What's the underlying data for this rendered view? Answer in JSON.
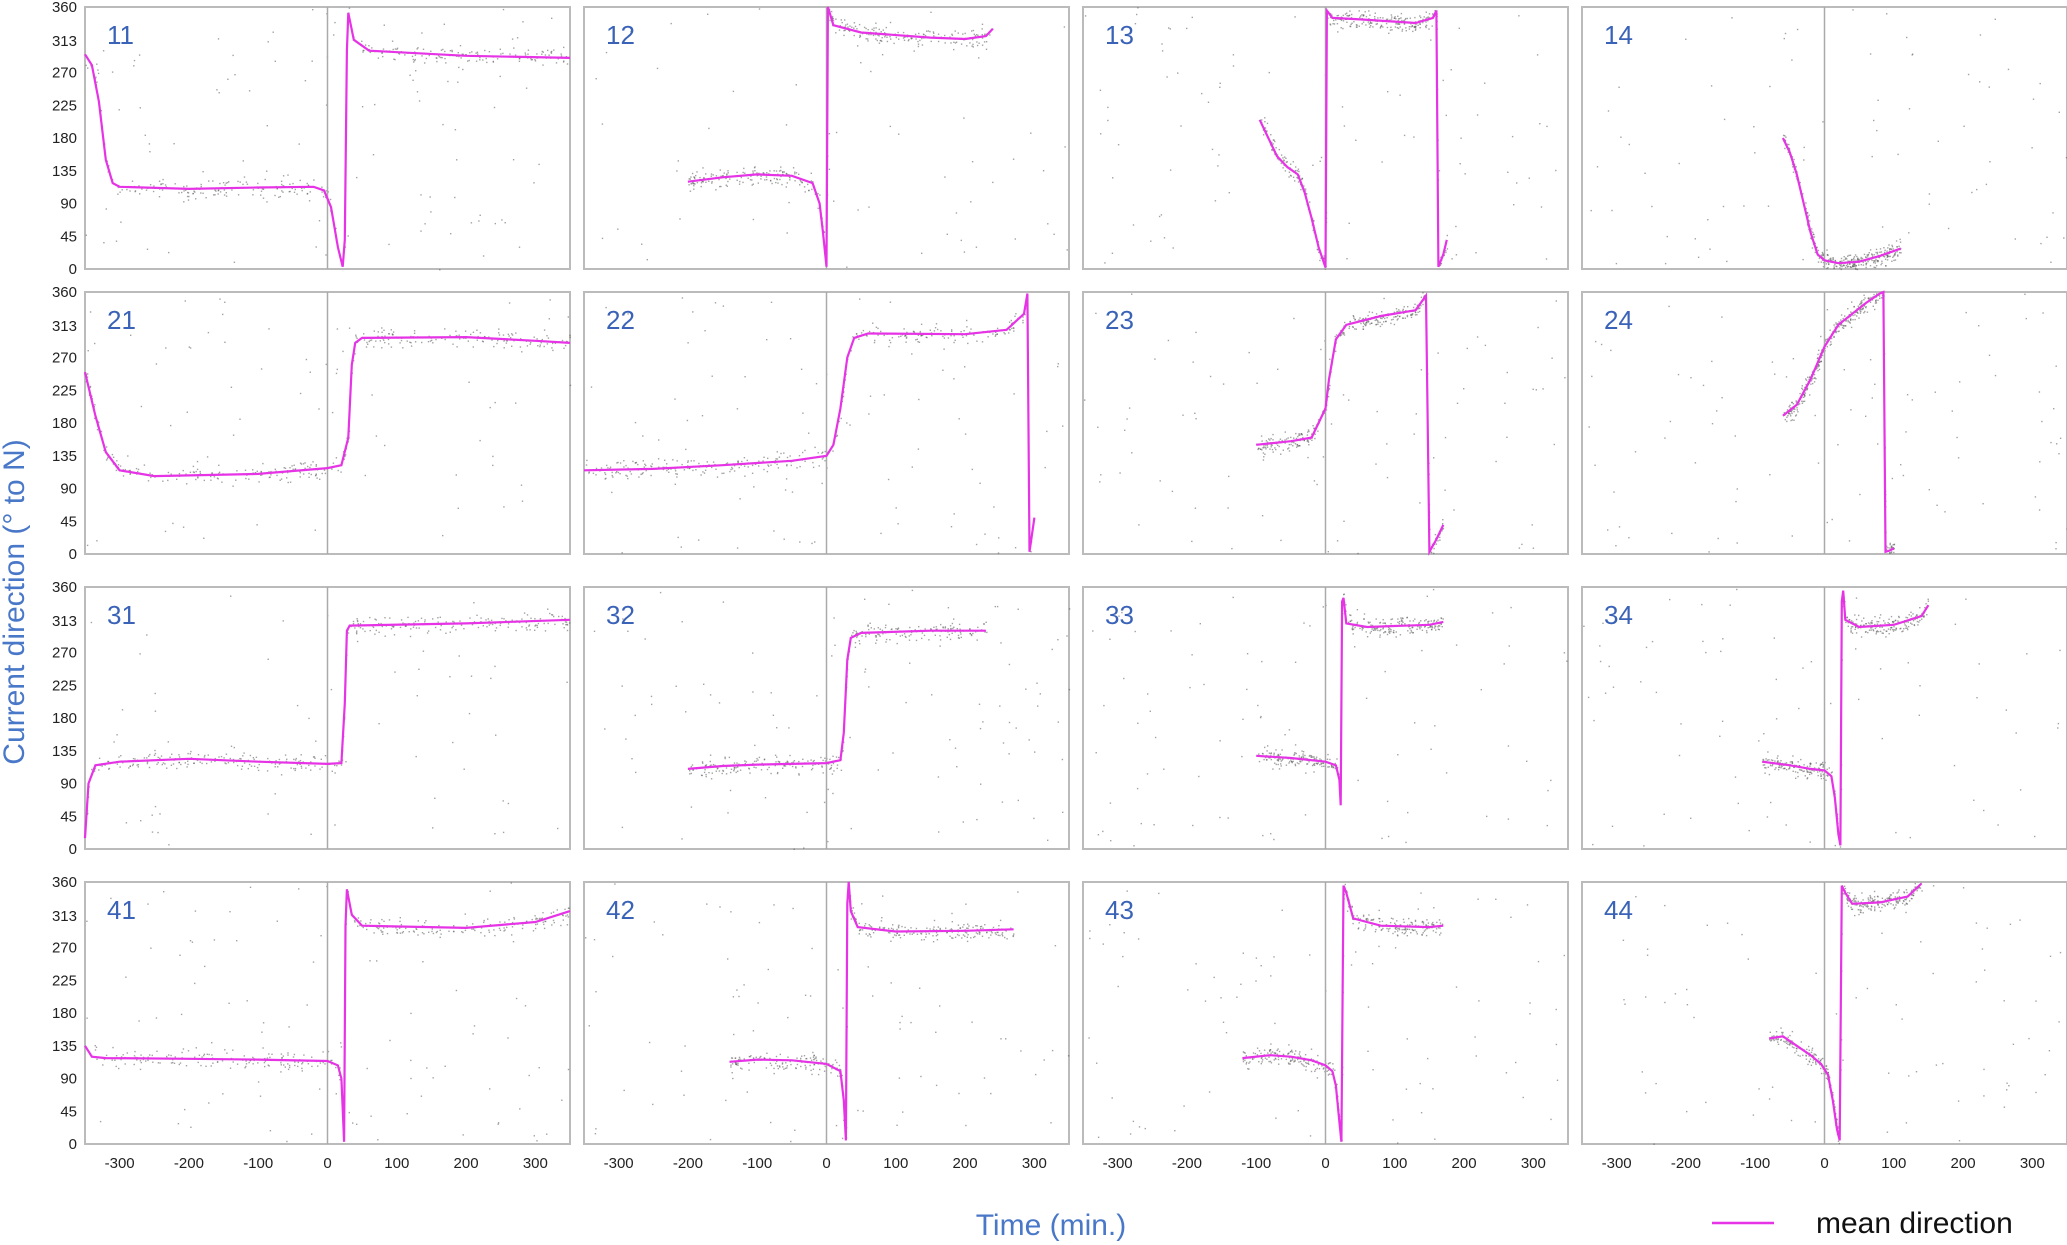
{
  "figure": {
    "ylabel": "Current direction (° to N)",
    "xlabel": "Time (min.)",
    "legend_label": "mean direction"
  },
  "colors": {
    "mean_line": "#e633e6",
    "points": "#555555",
    "axis_title": "#4a78c8",
    "panel_label": "#3a63b8",
    "frame": "#bbbbbb",
    "zero_line": "#aaaaaa"
  },
  "chart_data": {
    "type": "scatter",
    "xlim": [
      -350,
      350
    ],
    "ylim": [
      0,
      360
    ],
    "x_ticks": [
      -300,
      -200,
      -100,
      0,
      100,
      200,
      300
    ],
    "y_ticks": [
      0,
      45,
      90,
      135,
      180,
      225,
      270,
      313,
      360
    ],
    "grid": false,
    "legend_position": "bottom-right",
    "series_name": "mean direction",
    "panels": [
      {
        "label": "11",
        "mean": [
          [
            -350,
            295
          ],
          [
            -340,
            280
          ],
          [
            -330,
            230
          ],
          [
            -320,
            150
          ],
          [
            -310,
            118
          ],
          [
            -300,
            113
          ],
          [
            -200,
            110
          ],
          [
            -100,
            112
          ],
          [
            -20,
            113
          ],
          [
            -5,
            108
          ],
          [
            5,
            85
          ],
          [
            15,
            30
          ],
          [
            22,
            3
          ],
          [
            25,
            40
          ],
          [
            28,
            300
          ],
          [
            30,
            352
          ],
          [
            38,
            315
          ],
          [
            60,
            300
          ],
          [
            200,
            293
          ],
          [
            350,
            290
          ]
        ]
      },
      {
        "label": "21",
        "mean": [
          [
            -350,
            250
          ],
          [
            -335,
            190
          ],
          [
            -320,
            140
          ],
          [
            -300,
            115
          ],
          [
            -250,
            107
          ],
          [
            -100,
            110
          ],
          [
            0,
            118
          ],
          [
            20,
            122
          ],
          [
            30,
            160
          ],
          [
            35,
            260
          ],
          [
            40,
            290
          ],
          [
            50,
            297
          ],
          [
            200,
            298
          ],
          [
            300,
            293
          ],
          [
            350,
            290
          ]
        ]
      },
      {
        "label": "31",
        "mean": [
          [
            -350,
            15
          ],
          [
            -345,
            90
          ],
          [
            -335,
            115
          ],
          [
            -300,
            120
          ],
          [
            -200,
            124
          ],
          [
            -100,
            120
          ],
          [
            0,
            117
          ],
          [
            20,
            118
          ],
          [
            25,
            200
          ],
          [
            28,
            300
          ],
          [
            32,
            307
          ],
          [
            200,
            310
          ],
          [
            350,
            315
          ]
        ]
      },
      {
        "label": "41",
        "mean": [
          [
            -350,
            135
          ],
          [
            -340,
            120
          ],
          [
            -320,
            118
          ],
          [
            -200,
            117
          ],
          [
            -100,
            116
          ],
          [
            0,
            114
          ],
          [
            15,
            108
          ],
          [
            20,
            90
          ],
          [
            24,
            3
          ],
          [
            26,
            300
          ],
          [
            28,
            350
          ],
          [
            35,
            315
          ],
          [
            50,
            300
          ],
          [
            200,
            297
          ],
          [
            300,
            305
          ],
          [
            350,
            320
          ]
        ]
      },
      {
        "label": "12",
        "mean": [
          [
            -200,
            120
          ],
          [
            -150,
            126
          ],
          [
            -100,
            130
          ],
          [
            -50,
            128
          ],
          [
            -20,
            118
          ],
          [
            -10,
            90
          ],
          [
            -5,
            50
          ],
          [
            0,
            3
          ],
          [
            2,
            360
          ],
          [
            10,
            335
          ],
          [
            50,
            325
          ],
          [
            150,
            318
          ],
          [
            200,
            316
          ],
          [
            230,
            320
          ],
          [
            240,
            330
          ]
        ]
      },
      {
        "label": "22",
        "mean": [
          [
            -350,
            115
          ],
          [
            -250,
            117
          ],
          [
            -150,
            122
          ],
          [
            -50,
            128
          ],
          [
            0,
            135
          ],
          [
            10,
            150
          ],
          [
            20,
            200
          ],
          [
            30,
            270
          ],
          [
            40,
            297
          ],
          [
            60,
            303
          ],
          [
            200,
            302
          ],
          [
            260,
            308
          ],
          [
            285,
            330
          ],
          [
            290,
            358
          ],
          [
            293,
            3
          ],
          [
            300,
            50
          ]
        ]
      },
      {
        "label": "32",
        "mean": [
          [
            -200,
            110
          ],
          [
            -150,
            114
          ],
          [
            -100,
            116
          ],
          [
            -50,
            117
          ],
          [
            0,
            118
          ],
          [
            20,
            122
          ],
          [
            25,
            160
          ],
          [
            30,
            260
          ],
          [
            35,
            290
          ],
          [
            50,
            297
          ],
          [
            150,
            300
          ],
          [
            230,
            300
          ]
        ]
      },
      {
        "label": "42",
        "mean": [
          [
            -140,
            113
          ],
          [
            -100,
            116
          ],
          [
            -50,
            115
          ],
          [
            0,
            110
          ],
          [
            20,
            100
          ],
          [
            25,
            60
          ],
          [
            28,
            5
          ],
          [
            30,
            330
          ],
          [
            32,
            360
          ],
          [
            35,
            320
          ],
          [
            45,
            298
          ],
          [
            100,
            292
          ],
          [
            200,
            293
          ],
          [
            270,
            295
          ]
        ]
      },
      {
        "label": "13",
        "mean": [
          [
            -95,
            205
          ],
          [
            -85,
            185
          ],
          [
            -70,
            155
          ],
          [
            -55,
            140
          ],
          [
            -40,
            130
          ],
          [
            -30,
            105
          ],
          [
            -20,
            70
          ],
          [
            -10,
            30
          ],
          [
            0,
            2
          ],
          [
            2,
            355
          ],
          [
            10,
            345
          ],
          [
            50,
            343
          ],
          [
            100,
            340
          ],
          [
            130,
            338
          ],
          [
            155,
            345
          ],
          [
            160,
            355
          ],
          [
            163,
            3
          ],
          [
            170,
            20
          ],
          [
            175,
            40
          ]
        ]
      },
      {
        "label": "23",
        "mean": [
          [
            -100,
            150
          ],
          [
            -50,
            155
          ],
          [
            -20,
            160
          ],
          [
            0,
            200
          ],
          [
            5,
            240
          ],
          [
            15,
            295
          ],
          [
            30,
            315
          ],
          [
            80,
            327
          ],
          [
            130,
            335
          ],
          [
            145,
            355
          ],
          [
            150,
            3
          ],
          [
            160,
            20
          ],
          [
            170,
            40
          ]
        ]
      },
      {
        "label": "33",
        "mean": [
          [
            -100,
            128
          ],
          [
            -50,
            125
          ],
          [
            0,
            120
          ],
          [
            15,
            115
          ],
          [
            20,
            95
          ],
          [
            22,
            60
          ],
          [
            24,
            340
          ],
          [
            26,
            345
          ],
          [
            30,
            310
          ],
          [
            60,
            305
          ],
          [
            150,
            308
          ],
          [
            170,
            312
          ]
        ]
      },
      {
        "label": "43",
        "mean": [
          [
            -120,
            118
          ],
          [
            -80,
            122
          ],
          [
            -50,
            120
          ],
          [
            -20,
            115
          ],
          [
            0,
            108
          ],
          [
            10,
            100
          ],
          [
            15,
            80
          ],
          [
            20,
            30
          ],
          [
            23,
            3
          ],
          [
            26,
            355
          ],
          [
            30,
            345
          ],
          [
            40,
            310
          ],
          [
            80,
            300
          ],
          [
            150,
            298
          ],
          [
            170,
            300
          ]
        ]
      },
      {
        "label": "14",
        "mean": [
          [
            -60,
            180
          ],
          [
            -50,
            160
          ],
          [
            -40,
            130
          ],
          [
            -30,
            90
          ],
          [
            -20,
            50
          ],
          [
            -10,
            20
          ],
          [
            0,
            12
          ],
          [
            20,
            8
          ],
          [
            50,
            10
          ],
          [
            80,
            18
          ],
          [
            110,
            28
          ]
        ]
      },
      {
        "label": "24",
        "mean": [
          [
            -60,
            190
          ],
          [
            -40,
            205
          ],
          [
            -20,
            240
          ],
          [
            0,
            285
          ],
          [
            20,
            315
          ],
          [
            40,
            330
          ],
          [
            60,
            345
          ],
          [
            80,
            358
          ],
          [
            85,
            360
          ],
          [
            88,
            3
          ],
          [
            95,
            5
          ],
          [
            100,
            8
          ]
        ]
      },
      {
        "label": "34",
        "mean": [
          [
            -90,
            120
          ],
          [
            -50,
            115
          ],
          [
            -20,
            110
          ],
          [
            0,
            108
          ],
          [
            10,
            100
          ],
          [
            15,
            70
          ],
          [
            20,
            20
          ],
          [
            23,
            5
          ],
          [
            25,
            340
          ],
          [
            27,
            355
          ],
          [
            30,
            315
          ],
          [
            50,
            305
          ],
          [
            100,
            308
          ],
          [
            140,
            320
          ],
          [
            150,
            335
          ]
        ]
      },
      {
        "label": "44",
        "mean": [
          [
            -80,
            145
          ],
          [
            -60,
            148
          ],
          [
            -40,
            135
          ],
          [
            -20,
            122
          ],
          [
            -5,
            110
          ],
          [
            5,
            95
          ],
          [
            12,
            60
          ],
          [
            18,
            20
          ],
          [
            22,
            5
          ],
          [
            25,
            355
          ],
          [
            30,
            345
          ],
          [
            40,
            330
          ],
          [
            80,
            332
          ],
          [
            120,
            340
          ],
          [
            140,
            358
          ]
        ]
      }
    ]
  }
}
